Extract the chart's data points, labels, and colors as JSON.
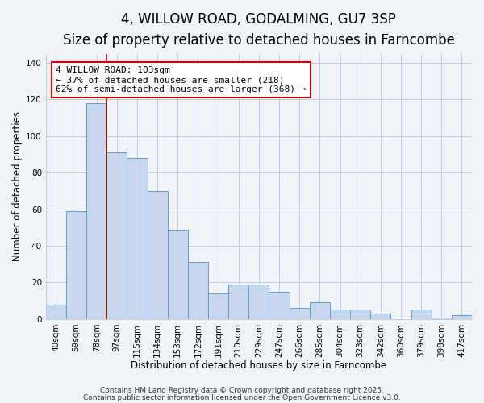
{
  "title": "4, WILLOW ROAD, GODALMING, GU7 3SP",
  "subtitle": "Size of property relative to detached houses in Farncombe",
  "xlabel": "Distribution of detached houses by size in Farncombe",
  "ylabel": "Number of detached properties",
  "bar_labels": [
    "40sqm",
    "59sqm",
    "78sqm",
    "97sqm",
    "115sqm",
    "134sqm",
    "153sqm",
    "172sqm",
    "191sqm",
    "210sqm",
    "229sqm",
    "247sqm",
    "266sqm",
    "285sqm",
    "304sqm",
    "323sqm",
    "342sqm",
    "360sqm",
    "379sqm",
    "398sqm",
    "417sqm"
  ],
  "bar_values": [
    8,
    59,
    118,
    91,
    88,
    70,
    49,
    31,
    14,
    19,
    19,
    15,
    6,
    9,
    5,
    5,
    3,
    0,
    5,
    1,
    2
  ],
  "bar_color": "#c8d8ec",
  "bar_edge_color": "#6699cc",
  "vline_x_index": 2,
  "vline_color": "#990000",
  "annotation_line1": "4 WILLOW ROAD: 103sqm",
  "annotation_line2": "← 37% of detached houses are smaller (218)",
  "annotation_line3": "62% of semi-detached houses are larger (368) →",
  "annotation_box_color": "#ffffff",
  "annotation_box_edgecolor": "#cc0000",
  "ylim": [
    0,
    145
  ],
  "yticks": [
    0,
    20,
    40,
    60,
    80,
    100,
    120,
    140
  ],
  "footer1": "Contains HM Land Registry data © Crown copyright and database right 2025.",
  "footer2": "Contains public sector information licensed under the Open Government Licence v3.0.",
  "bg_color": "#f0f4f8",
  "plot_bg_color": "#f0f4f8",
  "grid_color": "#c0ccd8",
  "title_fontsize": 12,
  "subtitle_fontsize": 9.5,
  "xlabel_fontsize": 8.5,
  "ylabel_fontsize": 8.5,
  "tick_fontsize": 7.5,
  "annotation_fontsize": 8,
  "footer_fontsize": 6.5
}
